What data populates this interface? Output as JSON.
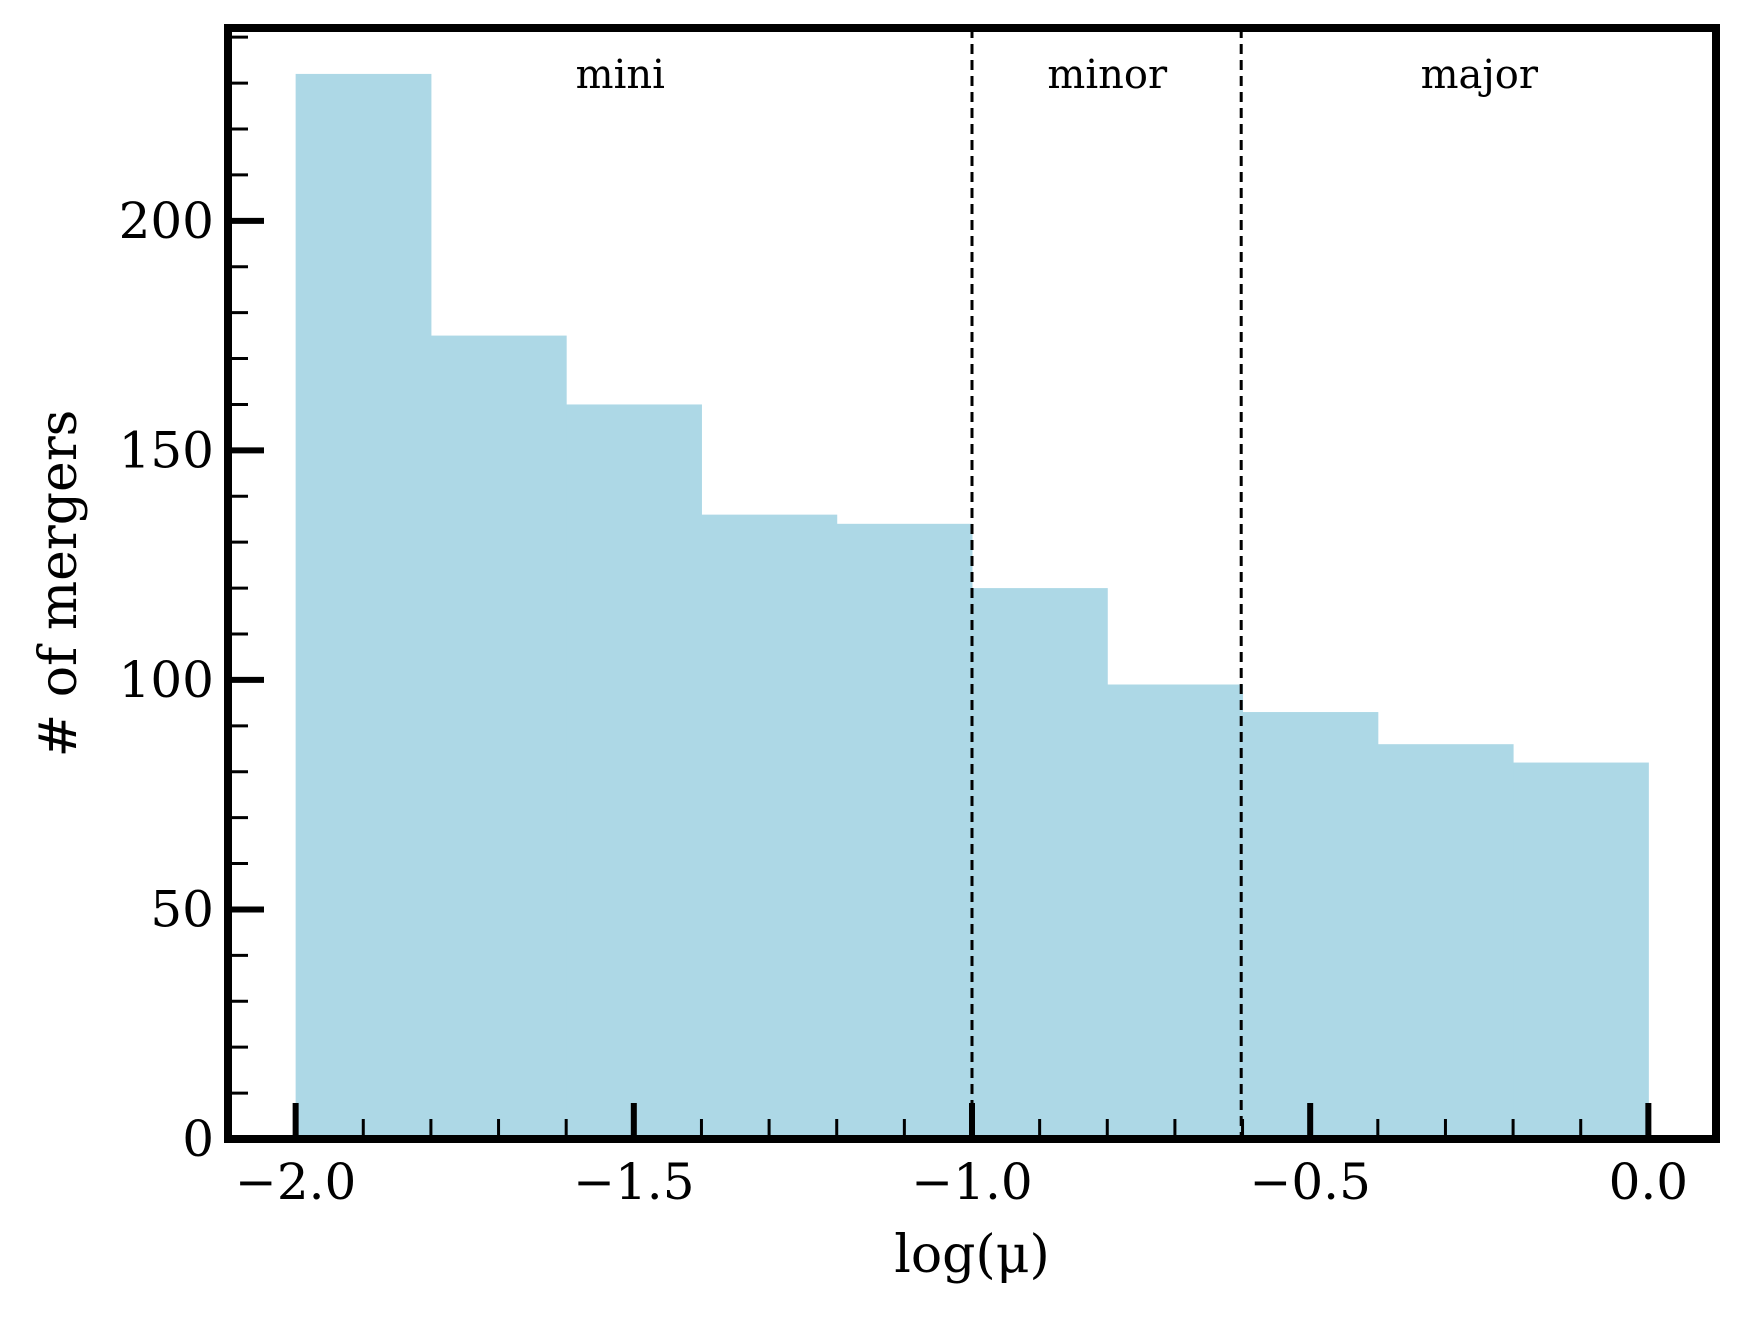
{
  "chart_data": {
    "type": "bar",
    "subtype": "histogram",
    "bin_edges": [
      -2.0,
      -1.8,
      -1.6,
      -1.4,
      -1.2,
      -1.0,
      -0.8,
      -0.6,
      -0.4,
      -0.2,
      0.0
    ],
    "values": [
      232,
      175,
      160,
      136,
      134,
      120,
      99,
      93,
      86,
      82
    ],
    "bar_color": "#add8e6",
    "xlabel": "log(μ)",
    "ylabel": "# of mergers",
    "xlim": [
      -2.1,
      0.1
    ],
    "ylim": [
      0,
      242
    ],
    "x_ticks": [
      -2.0,
      -1.5,
      -1.0,
      -0.5,
      0.0
    ],
    "x_tick_labels": [
      "−2.0",
      "−1.5",
      "−1.0",
      "−0.5",
      "0.0"
    ],
    "x_minor_step": 0.1,
    "y_ticks": [
      0,
      50,
      100,
      150,
      200
    ],
    "y_tick_labels": [
      "0",
      "50",
      "100",
      "150",
      "200"
    ],
    "y_minor_step": 10,
    "vlines": [
      {
        "x": -1.0,
        "style": "dashed",
        "color": "#000000"
      },
      {
        "x": -0.602,
        "style": "dashed",
        "color": "#000000"
      }
    ],
    "region_labels": [
      {
        "text": "mini",
        "x": -1.52,
        "y": 232
      },
      {
        "text": "minor",
        "x": -0.8,
        "y": 232
      },
      {
        "text": "major",
        "x": -0.25,
        "y": 232
      }
    ],
    "grid": false,
    "legend": "none"
  }
}
